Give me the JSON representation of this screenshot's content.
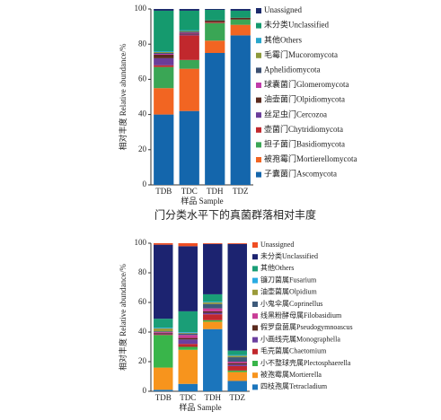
{
  "caption": "门分类水平下的真菌群落相对丰度",
  "chart_data": [
    {
      "type": "bar",
      "stacked": true,
      "categories": [
        "TDB",
        "TDC",
        "TDH",
        "TDZ"
      ],
      "y_label": "相对丰度 Relative abundance/%",
      "x_label": "样品 Sample",
      "ylim": [
        0,
        100
      ],
      "yticks": [
        0,
        20,
        40,
        60,
        80,
        100
      ],
      "series": [
        {
          "name": "Unassigned",
          "color": "#1b2a6b",
          "values": [
            1,
            1,
            0.5,
            1
          ]
        },
        {
          "name": "未分类Unclassified",
          "color": "#159a6e",
          "values": [
            23,
            11,
            6,
            4
          ]
        },
        {
          "name": "其他Others",
          "color": "#27a6cc",
          "values": [
            0.5,
            0.5,
            0,
            0
          ]
        },
        {
          "name": "毛霉门Mucoromycota",
          "color": "#8c9a3c",
          "values": [
            0.5,
            0.5,
            0,
            0
          ]
        },
        {
          "name": "Aphelidiomycota",
          "color": "#3c5070",
          "values": [
            0.5,
            0.5,
            0,
            0
          ]
        },
        {
          "name": "球囊菌门Glomeromycota",
          "color": "#c03caa",
          "values": [
            0.5,
            0.5,
            0,
            0
          ]
        },
        {
          "name": "油壶菌门Olpidiomycota",
          "color": "#5a2a1e",
          "values": [
            2,
            0.5,
            1,
            1
          ]
        },
        {
          "name": "丝足虫门Cercozoa",
          "color": "#6a3d9a",
          "values": [
            4,
            0.5,
            0,
            0
          ]
        },
        {
          "name": "壶菌门Chytridiomycota",
          "color": "#c1282d",
          "values": [
            1,
            14,
            0.5,
            0
          ]
        },
        {
          "name": "担子菌门Basidiomycota",
          "color": "#3aa655",
          "values": [
            12,
            5,
            10,
            3
          ]
        },
        {
          "name": "被孢霉门Mortierellomycota",
          "color": "#f26522",
          "values": [
            15,
            24,
            7,
            6
          ]
        },
        {
          "name": "子囊菌门Ascomycota",
          "color": "#1466ac",
          "values": [
            40,
            42,
            75,
            85
          ]
        }
      ]
    },
    {
      "type": "bar",
      "stacked": true,
      "categories": [
        "TDB",
        "TDC",
        "TDH",
        "TDZ"
      ],
      "y_label": "相对丰度 Relative abundance/%",
      "x_label": "样品 Sample",
      "ylim": [
        0,
        100
      ],
      "yticks": [
        0,
        20,
        40,
        60,
        80,
        100
      ],
      "series": [
        {
          "name": "Unassigned",
          "color": "#f04e23",
          "values": [
            1,
            2,
            0.5,
            0.5
          ]
        },
        {
          "name": "未分类Unclassified",
          "color": "#1c2370",
          "values": [
            50,
            44,
            34,
            72
          ]
        },
        {
          "name": "其他Others",
          "color": "#1a9e77",
          "values": [
            6,
            14,
            5,
            3
          ]
        },
        {
          "name": "镰刀菌属Fusarium",
          "color": "#29abe2",
          "values": [
            0.5,
            0.5,
            0.5,
            0.5
          ]
        },
        {
          "name": "油壶菌属Olpidium",
          "color": "#9a9a3a",
          "values": [
            2,
            0.5,
            1,
            1
          ]
        },
        {
          "name": "小鬼伞属Coprinellus",
          "color": "#3d5a7a",
          "values": [
            0.5,
            1,
            3,
            3
          ]
        },
        {
          "name": "线黑粉酵母属Filobasidium",
          "color": "#c83c96",
          "values": [
            0.5,
            2,
            2,
            1
          ]
        },
        {
          "name": "假罗盘菌属Pseudogymnoascus",
          "color": "#5a2a1e",
          "values": [
            0.5,
            1,
            1,
            1
          ]
        },
        {
          "name": "小画线壳属Monographella",
          "color": "#6b3fa0",
          "values": [
            0.5,
            3,
            1,
            1
          ]
        },
        {
          "name": "毛壳菌属Chaetomium",
          "color": "#c1272d",
          "values": [
            0.5,
            2,
            4,
            3
          ]
        },
        {
          "name": "小不整球壳属Plectosphaerella",
          "color": "#39b54a",
          "values": [
            22,
            2,
            1,
            1
          ]
        },
        {
          "name": "被孢霉属Mortierella",
          "color": "#f7941d",
          "values": [
            15,
            23,
            5,
            6
          ]
        },
        {
          "name": "四枝孢属Tetracladium",
          "color": "#1b75bc",
          "values": [
            1,
            5,
            42,
            7
          ]
        }
      ]
    }
  ]
}
